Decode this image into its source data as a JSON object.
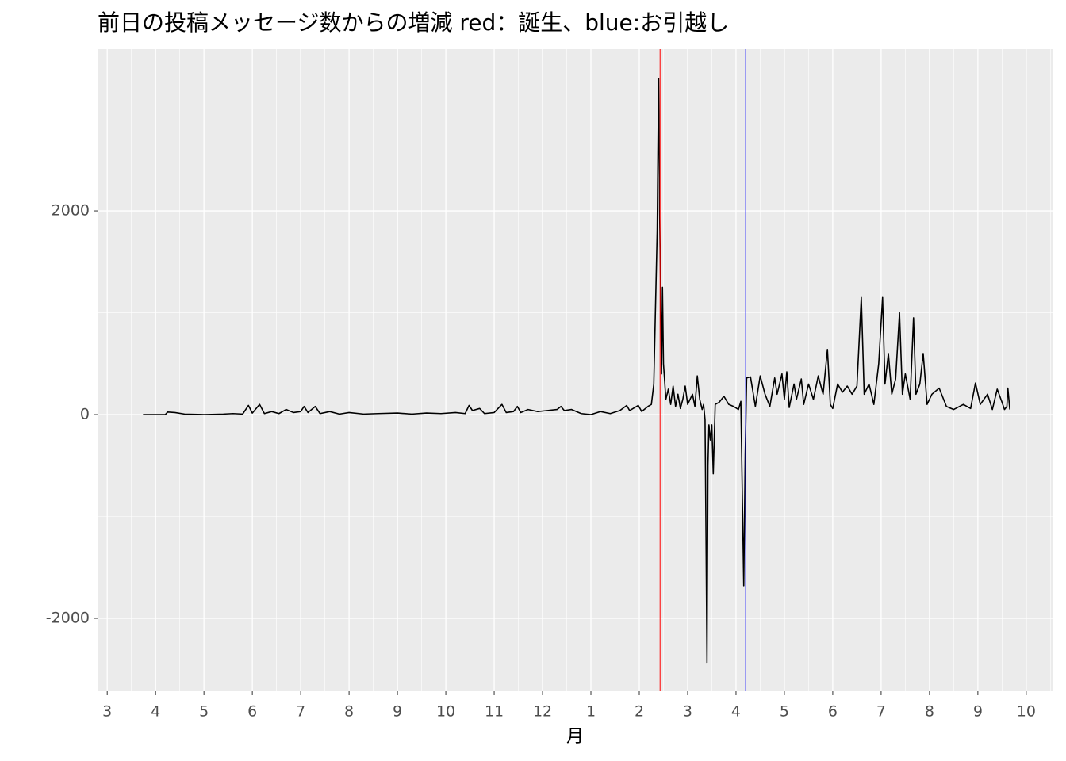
{
  "chart_data": {
    "type": "line",
    "title": "前日の投稿メッセージ数からの増減 red：誕生、blue:お引越し",
    "x_label": "月",
    "color": "#000000",
    "x": [
      0.74,
      1.2,
      1.25,
      1.4,
      1.6,
      2.0,
      2.4,
      2.6,
      2.8,
      2.92,
      3.0,
      3.15,
      3.25,
      3.4,
      3.55,
      3.7,
      3.85,
      4.0,
      4.07,
      4.15,
      4.3,
      4.4,
      4.6,
      4.8,
      5.0,
      5.3,
      5.6,
      6.0,
      6.3,
      6.6,
      6.9,
      7.2,
      7.4,
      7.48,
      7.55,
      7.7,
      7.8,
      8.0,
      8.16,
      8.25,
      8.4,
      8.48,
      8.55,
      8.7,
      8.9,
      9.1,
      9.3,
      9.38,
      9.45,
      9.6,
      9.8,
      10.0,
      10.2,
      10.4,
      10.6,
      10.74,
      10.8,
      10.98,
      11.05,
      11.18,
      11.25,
      11.3,
      11.37,
      11.4,
      11.42,
      11.44,
      11.46,
      11.48,
      11.5,
      11.55,
      11.6,
      11.65,
      11.7,
      11.75,
      11.8,
      11.85,
      11.9,
      11.95,
      12.0,
      12.1,
      12.15,
      12.2,
      12.25,
      12.3,
      12.33,
      12.36,
      12.38,
      12.4,
      12.42,
      12.44,
      12.47,
      12.5,
      12.53,
      12.57,
      12.65,
      12.75,
      12.85,
      12.95,
      13.05,
      13.1,
      13.13,
      13.16,
      13.19,
      13.22,
      13.3,
      13.4,
      13.5,
      13.6,
      13.7,
      13.8,
      13.85,
      13.95,
      14.0,
      14.05,
      14.1,
      14.2,
      14.25,
      14.35,
      14.4,
      14.5,
      14.6,
      14.7,
      14.8,
      14.89,
      14.95,
      15.0,
      15.1,
      15.2,
      15.3,
      15.4,
      15.5,
      15.59,
      15.65,
      15.75,
      15.85,
      15.95,
      16.03,
      16.08,
      16.15,
      16.22,
      16.3,
      16.38,
      16.44,
      16.5,
      16.6,
      16.67,
      16.72,
      16.8,
      16.87,
      16.95,
      17.05,
      17.2,
      17.35,
      17.5,
      17.7,
      17.85,
      17.95,
      18.05,
      18.2,
      18.3,
      18.4,
      18.5,
      18.55,
      18.6,
      18.62,
      18.66
    ],
    "values": [
      0,
      0,
      25,
      20,
      5,
      0,
      5,
      10,
      5,
      90,
      15,
      100,
      10,
      30,
      10,
      50,
      20,
      30,
      80,
      20,
      80,
      10,
      30,
      5,
      20,
      5,
      10,
      15,
      5,
      15,
      10,
      20,
      10,
      90,
      40,
      60,
      10,
      20,
      100,
      20,
      30,
      80,
      20,
      50,
      30,
      40,
      50,
      80,
      40,
      50,
      10,
      0,
      30,
      10,
      40,
      90,
      40,
      90,
      30,
      80,
      100,
      300,
      1800,
      3300,
      2000,
      1300,
      400,
      1250,
      500,
      150,
      250,
      100,
      280,
      80,
      200,
      60,
      150,
      280,
      100,
      200,
      80,
      380,
      150,
      50,
      100,
      -50,
      -1200,
      -2440,
      -500,
      -100,
      -250,
      -100,
      -580,
      100,
      120,
      180,
      100,
      80,
      50,
      130,
      -780,
      -1680,
      -400,
      360,
      370,
      80,
      380,
      200,
      80,
      360,
      200,
      400,
      150,
      420,
      70,
      300,
      150,
      350,
      100,
      300,
      150,
      380,
      200,
      640,
      100,
      60,
      300,
      220,
      280,
      200,
      280,
      1150,
      200,
      300,
      100,
      500,
      1150,
      300,
      600,
      200,
      350,
      1000,
      200,
      400,
      150,
      950,
      200,
      300,
      600,
      100,
      200,
      260,
      80,
      50,
      100,
      60,
      310,
      100,
      200,
      50,
      250,
      120,
      50,
      80,
      260,
      50
    ],
    "xlim": [
      -0.2,
      19.56
    ],
    "xticks": [
      {
        "value": 0,
        "label": "3"
      },
      {
        "value": 1,
        "label": "4"
      },
      {
        "value": 2,
        "label": "5"
      },
      {
        "value": 3,
        "label": "6"
      },
      {
        "value": 4,
        "label": "7"
      },
      {
        "value": 5,
        "label": "8"
      },
      {
        "value": 6,
        "label": "9"
      },
      {
        "value": 7,
        "label": "10"
      },
      {
        "value": 8,
        "label": "11"
      },
      {
        "value": 9,
        "label": "12"
      },
      {
        "value": 10,
        "label": "1"
      },
      {
        "value": 11,
        "label": "2"
      },
      {
        "value": 12,
        "label": "3"
      },
      {
        "value": 13,
        "label": "4"
      },
      {
        "value": 14,
        "label": "5"
      },
      {
        "value": 15,
        "label": "6"
      },
      {
        "value": 16,
        "label": "7"
      },
      {
        "value": 17,
        "label": "8"
      },
      {
        "value": 18,
        "label": "9"
      },
      {
        "value": 19,
        "label": "10"
      }
    ],
    "ylim": [
      -2716,
      3588
    ],
    "yticks": [
      -2000,
      0,
      2000
    ],
    "grid": true,
    "vlines": [
      {
        "x": 11.43,
        "color": "#ff0000"
      },
      {
        "x": 13.2,
        "color": "#0000ff"
      }
    ]
  }
}
